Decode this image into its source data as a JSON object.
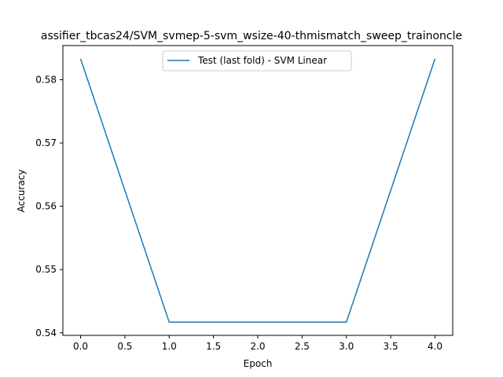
{
  "chart_data": {
    "type": "line",
    "title": "assifier_tbcas24/SVM_svmep-5-svm_wsize-40-thmismatch_sweep_trainoncle",
    "xlabel": "Epoch",
    "ylabel": "Accuracy",
    "xlim": [
      -0.2,
      4.2
    ],
    "ylim": [
      0.5396,
      0.5854
    ],
    "xticks": [
      0.0,
      0.5,
      1.0,
      1.5,
      2.0,
      2.5,
      3.0,
      3.5,
      4.0
    ],
    "xtick_labels": [
      "0.0",
      "0.5",
      "1.0",
      "1.5",
      "2.0",
      "2.5",
      "3.0",
      "3.5",
      "4.0"
    ],
    "yticks": [
      0.54,
      0.55,
      0.56,
      0.57,
      0.58
    ],
    "ytick_labels": [
      "0.54",
      "0.55",
      "0.56",
      "0.57",
      "0.58"
    ],
    "grid": false,
    "legend_position": "upper center",
    "series": [
      {
        "name": "Test (last fold) - SVM Linear",
        "color": "#1f77b4",
        "x": [
          0,
          1,
          2,
          3,
          4
        ],
        "y": [
          0.5833,
          0.5417,
          0.5417,
          0.5417,
          0.5833
        ]
      }
    ]
  }
}
